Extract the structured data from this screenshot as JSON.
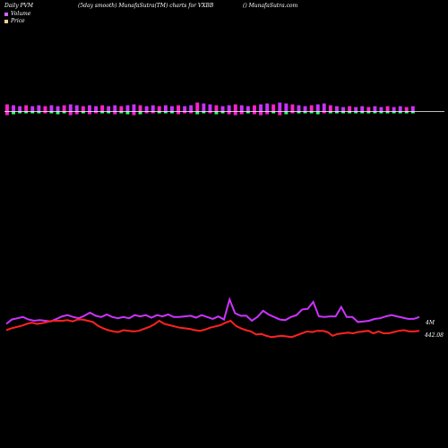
{
  "header": {
    "left": "Daily PVM",
    "center": "(5day smooth) MunafaSutra(TM) charts for VXBB",
    "right": "() MunafaSutra.com"
  },
  "legend": [
    {
      "label": "Volume",
      "color": "#cc66ff"
    },
    {
      "label": "Price",
      "color": "#ffcc99"
    }
  ],
  "colors": {
    "background": "#000000",
    "volume_line": "#cc33ff",
    "price_line": "#ff2222",
    "bar_up": "#ff22cc",
    "bar_magenta": "#cc33ff",
    "bar_down": "#33ff66",
    "baseline": "#ffffff"
  },
  "chart_data": {
    "type": "line",
    "volume_label": "4M",
    "price_label": "442.08",
    "bars": {
      "up": [
        8,
        7,
        6,
        7,
        6,
        7,
        6,
        7,
        6,
        7,
        8,
        7,
        6,
        7,
        6,
        7,
        6,
        7,
        6,
        7,
        8,
        7,
        6,
        7,
        6,
        7,
        6,
        7,
        6,
        7,
        10,
        9,
        8,
        7,
        6,
        7,
        8,
        7,
        6,
        7,
        8,
        9,
        8,
        10,
        9,
        8,
        7,
        6,
        7,
        8,
        9,
        7,
        6,
        5,
        6,
        5,
        6,
        5,
        6,
        5,
        6,
        5,
        6,
        5,
        6
      ],
      "down": [
        4,
        3,
        2,
        2,
        2,
        2,
        2,
        2,
        3,
        2,
        4,
        3,
        2,
        3,
        2,
        2,
        2,
        3,
        2,
        3,
        4,
        3,
        2,
        2,
        2,
        2,
        2,
        3,
        2,
        2,
        3,
        2,
        2,
        3,
        2,
        3,
        4,
        3,
        2,
        3,
        4,
        3,
        2,
        4,
        3,
        2,
        2,
        2,
        2,
        3,
        2,
        2,
        2,
        2,
        2,
        2,
        2,
        2,
        2,
        2,
        2,
        2,
        2,
        2,
        2
      ],
      "down_color": [
        "r",
        "g",
        "g",
        "g",
        "g",
        "g",
        "r",
        "g",
        "g",
        "g",
        "r",
        "r",
        "g",
        "r",
        "r",
        "g",
        "g",
        "r",
        "g",
        "g",
        "r",
        "g",
        "r",
        "r",
        "g",
        "g",
        "g",
        "r",
        "r",
        "r",
        "g",
        "g",
        "r",
        "g",
        "g",
        "r",
        "r",
        "r",
        "g",
        "r",
        "r",
        "r",
        "g",
        "r",
        "g",
        "r",
        "g",
        "g",
        "g",
        "g",
        "r",
        "g",
        "g",
        "g",
        "g",
        "g",
        "g",
        "g",
        "g",
        "g",
        "g",
        "g",
        "g",
        "g",
        "g"
      ]
    },
    "volume": [
      0.55,
      0.62,
      0.64,
      0.66,
      0.62,
      0.6,
      0.61,
      0.6,
      0.59,
      0.63,
      0.67,
      0.69,
      0.66,
      0.64,
      0.68,
      0.73,
      0.68,
      0.66,
      0.7,
      0.66,
      0.64,
      0.66,
      0.64,
      0.69,
      0.67,
      0.69,
      0.65,
      0.69,
      0.67,
      0.7,
      0.66,
      0.66,
      0.67,
      0.68,
      0.65,
      0.69,
      0.66,
      0.63,
      0.67,
      0.62,
      0.94,
      0.72,
      0.68,
      0.68,
      0.6,
      0.66,
      0.76,
      0.7,
      0.66,
      0.62,
      0.61,
      0.66,
      0.69,
      0.78,
      0.79,
      0.9,
      0.67,
      0.66,
      0.67,
      0.67,
      0.82,
      0.66,
      0.66,
      0.58,
      0.59,
      0.6,
      0.63,
      0.64,
      0.67,
      0.69,
      0.67,
      0.65,
      0.63,
      0.63,
      0.66
    ],
    "price": [
      0.45,
      0.48,
      0.5,
      0.52,
      0.55,
      0.57,
      0.55,
      0.56,
      0.58,
      0.6,
      0.6,
      0.6,
      0.61,
      0.59,
      0.62,
      0.62,
      0.6,
      0.58,
      0.52,
      0.48,
      0.45,
      0.43,
      0.42,
      0.45,
      0.44,
      0.43,
      0.44,
      0.47,
      0.5,
      0.54,
      0.6,
      0.55,
      0.53,
      0.51,
      0.49,
      0.48,
      0.47,
      0.45,
      0.44,
      0.46,
      0.49,
      0.51,
      0.53,
      0.57,
      0.6,
      0.52,
      0.48,
      0.45,
      0.43,
      0.38,
      0.39,
      0.36,
      0.34,
      0.35,
      0.36,
      0.35,
      0.34,
      0.37,
      0.4,
      0.43,
      0.42,
      0.44,
      0.44,
      0.42,
      0.36,
      0.39,
      0.4,
      0.41,
      0.4,
      0.42,
      0.43,
      0.44,
      0.4,
      0.43,
      0.4,
      0.4,
      0.42,
      0.44,
      0.45,
      0.43,
      0.43,
      0.44
    ]
  }
}
